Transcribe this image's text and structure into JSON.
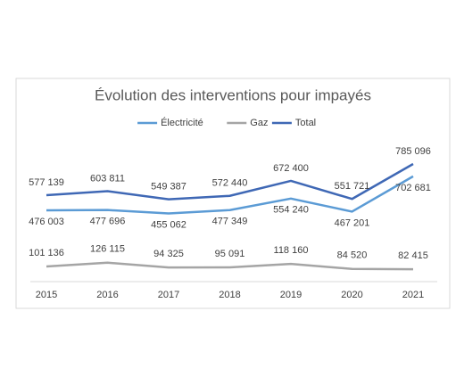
{
  "chart_data": {
    "type": "line",
    "title": "Évolution des interventions pour impayés",
    "categories": [
      "2015",
      "2016",
      "2017",
      "2018",
      "2019",
      "2020",
      "2021"
    ],
    "series": [
      {
        "name": "Électricité",
        "color": "#5b9bd5",
        "values": [
          476003,
          477696,
          455062,
          477349,
          554240,
          467201,
          702681
        ],
        "value_labels": [
          "476 003",
          "477 696",
          "455 062",
          "477 349",
          "554 240",
          "467 201",
          "702 681"
        ]
      },
      {
        "name": "Gaz",
        "color": "#a5a5a5",
        "values": [
          101136,
          126115,
          94325,
          95091,
          118160,
          84520,
          82415
        ],
        "value_labels": [
          "101 136",
          "126 115",
          "94 325",
          "95 091",
          "118 160",
          "84 520",
          "82 415"
        ]
      },
      {
        "name": "Total",
        "color": "#3f68b5",
        "values": [
          577139,
          603811,
          549387,
          572440,
          672400,
          551721,
          785096
        ],
        "value_labels": [
          "577 139",
          "603 811",
          "549 387",
          "572 440",
          "672 400",
          "551 721",
          "785 096"
        ]
      }
    ],
    "legend": "top"
  }
}
